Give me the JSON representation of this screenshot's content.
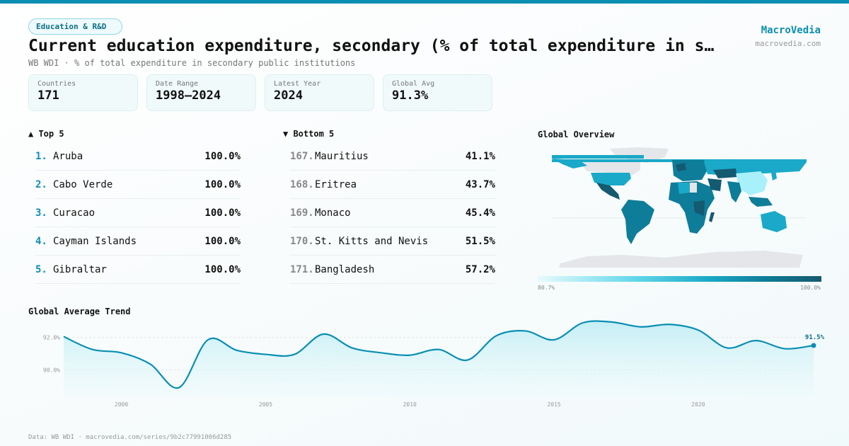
{
  "category": "Education & R&D",
  "title": "Current education expenditure, secondary (% of total expenditure in secondary public institutions)",
  "subtitle": "WB WDI · % of total expenditure in secondary public institutions",
  "brand": {
    "name": "MacroVedia",
    "url": "macrovedia.com"
  },
  "stats": [
    {
      "label": "Countries",
      "value": "171"
    },
    {
      "label": "Date Range",
      "value": "1998–2024"
    },
    {
      "label": "Latest Year",
      "value": "2024"
    },
    {
      "label": "Global Avg",
      "value": "91.3%"
    }
  ],
  "top5": {
    "title": "▲ Top 5",
    "items": [
      {
        "rank": "1.",
        "name": "Aruba",
        "value": "100.0%"
      },
      {
        "rank": "2.",
        "name": "Cabo Verde",
        "value": "100.0%"
      },
      {
        "rank": "3.",
        "name": "Curacao",
        "value": "100.0%"
      },
      {
        "rank": "4.",
        "name": "Cayman Islands",
        "value": "100.0%"
      },
      {
        "rank": "5.",
        "name": "Gibraltar",
        "value": "100.0%"
      }
    ]
  },
  "bottom5": {
    "title": "▼ Bottom 5",
    "items": [
      {
        "rank": "167.",
        "name": "Mauritius",
        "value": "41.1%"
      },
      {
        "rank": "168.",
        "name": "Eritrea",
        "value": "43.7%"
      },
      {
        "rank": "169.",
        "name": "Monaco",
        "value": "45.4%"
      },
      {
        "rank": "170.",
        "name": "St. Kitts and Nevis",
        "value": "51.5%"
      },
      {
        "rank": "171.",
        "name": "Bangladesh",
        "value": "57.2%"
      }
    ]
  },
  "map": {
    "title": "Global Overview",
    "legend_min": "80.7%",
    "legend_max": "100.0%",
    "colors": [
      "#e8fbfd",
      "#5fd6ea",
      "#1aa9c8",
      "#0e7d99",
      "#145a70"
    ]
  },
  "trend_title": "Global Average Trend",
  "footer": "Data: WB WDI · macrovedia.com/series/9b2c77991006d285",
  "chart_data": {
    "type": "area",
    "title": "Global Average Trend",
    "x": [
      1998,
      1999,
      2000,
      2001,
      2002,
      2003,
      2004,
      2005,
      2006,
      2007,
      2008,
      2009,
      2010,
      2011,
      2012,
      2013,
      2014,
      2015,
      2016,
      2017,
      2018,
      2019,
      2020,
      2021,
      2022,
      2023,
      2024
    ],
    "values": [
      92.05,
      91.25,
      91.05,
      90.35,
      88.9,
      91.85,
      91.2,
      90.95,
      90.95,
      92.2,
      91.35,
      91.05,
      90.9,
      91.25,
      90.6,
      92.1,
      92.4,
      91.85,
      92.9,
      92.95,
      92.65,
      92.8,
      92.45,
      91.35,
      91.8,
      91.3,
      91.5
    ],
    "xticks": [
      "2000",
      "2005",
      "2010",
      "2015",
      "2020"
    ],
    "yticks": [
      "90.0%",
      "92.0%"
    ],
    "last_label": "91.5%",
    "ylim": [
      88.35,
      93.6
    ],
    "xlim": [
      1998,
      2024
    ],
    "grid": true,
    "color": "#0a8fb3"
  }
}
